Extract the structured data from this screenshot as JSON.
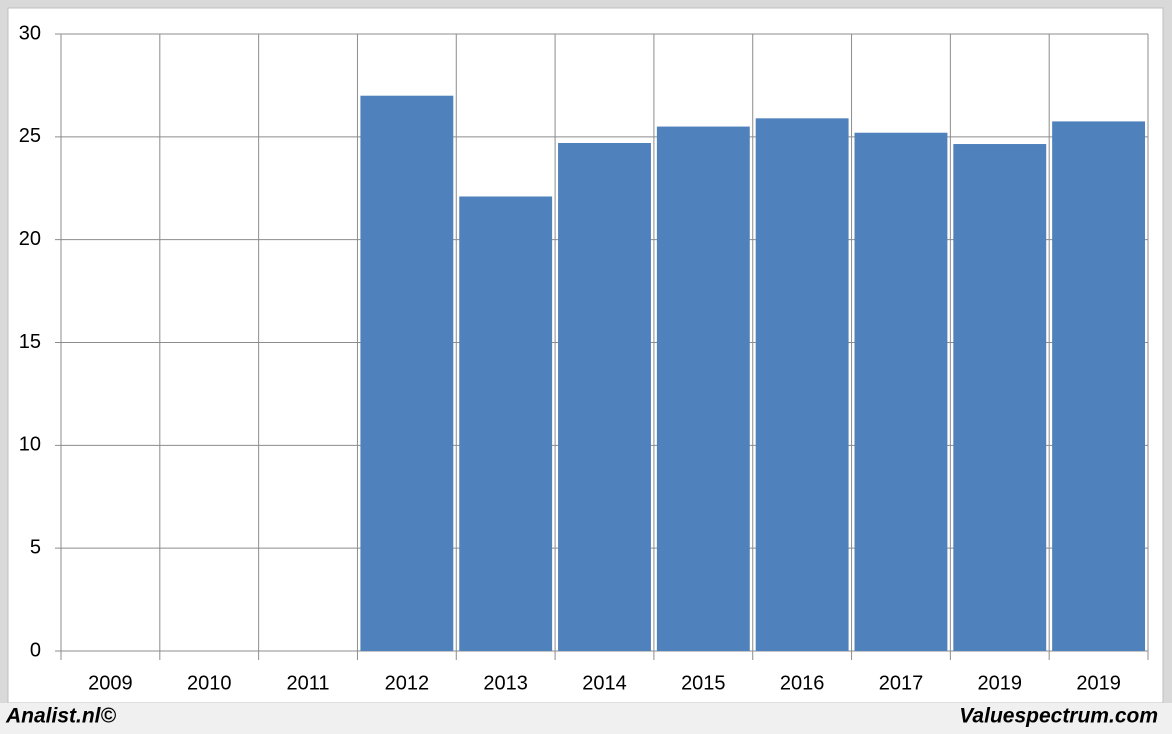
{
  "chart_data": {
    "type": "bar",
    "categories": [
      "2009",
      "2010",
      "2011",
      "2012",
      "2013",
      "2014",
      "2015",
      "2016",
      "2017",
      "2019",
      "2019"
    ],
    "values": [
      null,
      null,
      null,
      27.0,
      22.1,
      24.7,
      25.5,
      25.9,
      25.2,
      24.65,
      25.75
    ],
    "color": "#4f81bd",
    "ylim": [
      0,
      30
    ],
    "yticks": [
      0,
      5,
      10,
      15,
      20,
      25,
      30
    ],
    "grid": true,
    "footer_left": "Analist.nl©",
    "footer_right": "Valuespectrum.com"
  }
}
